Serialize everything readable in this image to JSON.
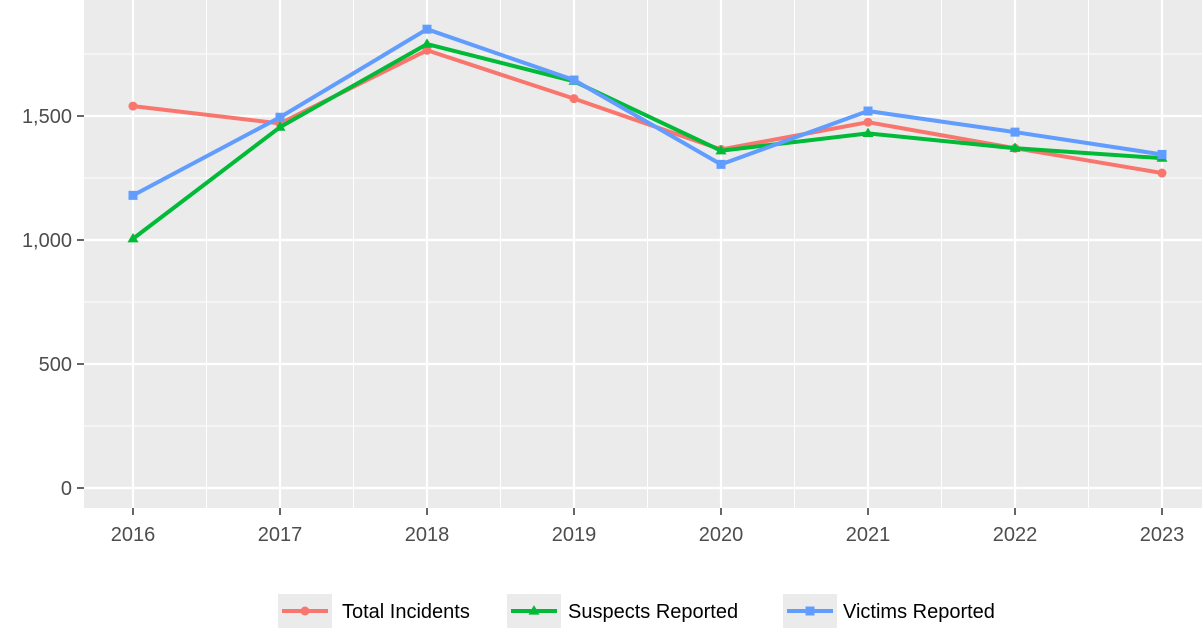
{
  "chart_data": {
    "type": "line",
    "title": "",
    "xlabel": "",
    "ylabel": "",
    "categories": [
      "2016",
      "2017",
      "2018",
      "2019",
      "2020",
      "2021",
      "2022",
      "2023"
    ],
    "ylim": [
      0,
      1900
    ],
    "yticks": [
      0,
      500,
      1000,
      1500
    ],
    "ytick_labels": [
      "0",
      "500",
      "1,000",
      "1,500"
    ],
    "grid": true,
    "legend_position": "bottom",
    "series": [
      {
        "name": "Total Incidents",
        "marker": "circle",
        "color": "#F8766D",
        "values": [
          1540,
          1470,
          1765,
          1570,
          1365,
          1475,
          1370,
          1270
        ]
      },
      {
        "name": "Suspects Reported",
        "marker": "triangle",
        "color": "#00BA38",
        "values": [
          1005,
          1455,
          1790,
          1640,
          1360,
          1430,
          1370,
          1330
        ]
      },
      {
        "name": "Victims Reported",
        "marker": "square",
        "color": "#619CFF",
        "values": [
          1180,
          1495,
          1850,
          1645,
          1305,
          1520,
          1435,
          1345
        ]
      }
    ]
  }
}
